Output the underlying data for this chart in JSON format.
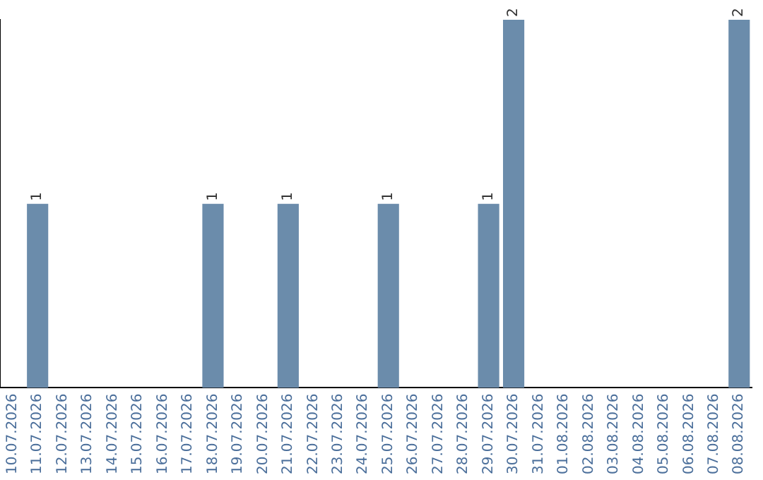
{
  "chart_data": {
    "type": "bar",
    "categories": [
      "10.07.2026",
      "11.07.2026",
      "12.07.2026",
      "13.07.2026",
      "14.07.2026",
      "15.07.2026",
      "16.07.2026",
      "17.07.2026",
      "18.07.2026",
      "19.07.2026",
      "20.07.2026",
      "21.07.2026",
      "22.07.2026",
      "23.07.2026",
      "24.07.2026",
      "25.07.2026",
      "26.07.2026",
      "27.07.2026",
      "28.07.2026",
      "29.07.2026",
      "30.07.2026",
      "31.07.2026",
      "01.08.2026",
      "02.08.2026",
      "03.08.2026",
      "04.08.2026",
      "05.08.2026",
      "06.08.2026",
      "07.08.2026",
      "08.08.2026"
    ],
    "values": [
      0,
      1,
      0,
      0,
      0,
      0,
      0,
      0,
      1,
      0,
      0,
      1,
      0,
      0,
      0,
      1,
      0,
      0,
      0,
      1,
      2,
      0,
      0,
      0,
      0,
      0,
      0,
      0,
      0,
      2
    ],
    "value_labels": [
      null,
      "1",
      null,
      null,
      null,
      null,
      null,
      null,
      "1",
      null,
      null,
      "1",
      null,
      null,
      null,
      "1",
      null,
      null,
      null,
      "1",
      "2",
      null,
      null,
      null,
      null,
      null,
      null,
      null,
      null,
      "2"
    ],
    "color": "#6b8cab",
    "grid": false,
    "legend": false,
    "tick_labels": "x"
  }
}
